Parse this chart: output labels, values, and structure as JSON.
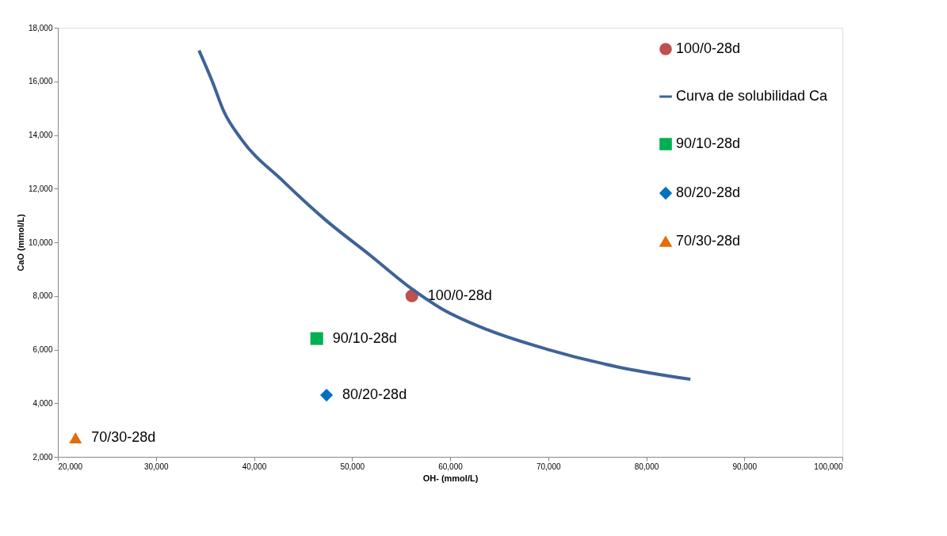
{
  "chart_data": {
    "type": "scatter",
    "xlabel": "OH- (mmol/L)",
    "ylabel": "CaO (mmol/L)",
    "xlim": [
      20000,
      100000
    ],
    "xticks": [
      {
        "value": 20000,
        "label": "20,000"
      },
      {
        "value": 30000,
        "label": "30,000"
      },
      {
        "value": 40000,
        "label": "40,000"
      },
      {
        "value": 50000,
        "label": "50,000"
      },
      {
        "value": 60000,
        "label": "60,000"
      },
      {
        "value": 70000,
        "label": "70,000"
      },
      {
        "value": 80000,
        "label": "80,000"
      },
      {
        "value": 90000,
        "label": "90,000"
      },
      {
        "value": 100000,
        "label": "100,000"
      }
    ],
    "ylim": [
      2000,
      18000
    ],
    "yticks": [
      {
        "value": 2000,
        "label": "2,000"
      },
      {
        "value": 4000,
        "label": "4,000"
      },
      {
        "value": 6000,
        "label": "6,000"
      },
      {
        "value": 8000,
        "label": "8,000"
      },
      {
        "value": 10000,
        "label": "10,000"
      },
      {
        "value": 12000,
        "label": "12,000"
      },
      {
        "value": 14000,
        "label": "14,000"
      },
      {
        "value": 16000,
        "label": "16,000"
      },
      {
        "value": 18000,
        "label": "18,000"
      }
    ],
    "grid": false,
    "legend": "top right",
    "series": [
      {
        "name": "100/0-28d",
        "marker": "circle",
        "color": "#c0504d",
        "x": [
          56100
        ],
        "values": [
          8000
        ]
      },
      {
        "name": "Curva de solubilidad Ca",
        "type": "line",
        "marker": "none",
        "line_style": "solid",
        "color": "#3e6398",
        "x": [
          34400,
          35800,
          36900,
          38700,
          43000,
          47300,
          51900,
          56100,
          59100,
          63800,
          69800,
          77000,
          84500
        ],
        "values": [
          17150,
          15950,
          14900,
          13850,
          12270,
          10830,
          9500,
          8260,
          7530,
          6740,
          6020,
          5360,
          4890
        ]
      },
      {
        "name": "90/10-28d",
        "marker": "square",
        "color": "#00b050",
        "x": [
          46400
        ],
        "values": [
          6410
        ]
      },
      {
        "name": "80/20-28d",
        "marker": "diamond",
        "color": "#0070c0",
        "x": [
          47400
        ],
        "values": [
          4300
        ]
      },
      {
        "name": "70/30-28d",
        "marker": "triangle",
        "color": "#e46c0a",
        "x": [
          21800
        ],
        "values": [
          2710
        ]
      }
    ]
  }
}
